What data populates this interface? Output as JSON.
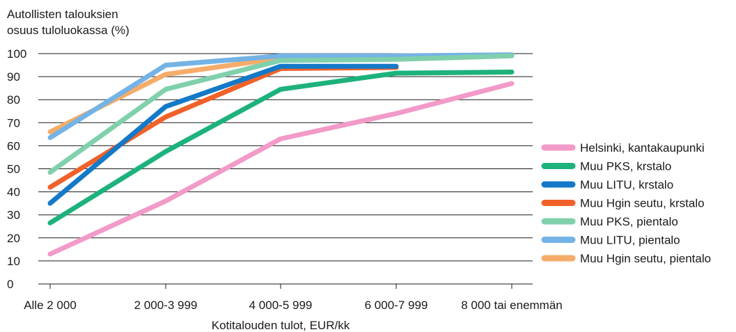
{
  "chart_data": {
    "type": "line",
    "ylabel_lines": [
      "Autollisten talouksien",
      "osuus tuloluokassa (%)"
    ],
    "xlabel": "Kotitalouden tulot, EUR/kk",
    "categories": [
      "Alle 2 000",
      "2 000-3 999",
      "4 000-5 999",
      "6 000-7 999",
      "8 000 tai enemmän"
    ],
    "ylim": [
      0,
      100
    ],
    "yticks": [
      "0",
      "10",
      "20",
      "30",
      "40",
      "50",
      "60",
      "70",
      "80",
      "90",
      "100"
    ],
    "grid": true,
    "legend_position": "right",
    "series": [
      {
        "name": "Helsinki, kantakaupunki",
        "color": "#f29ac8",
        "values": [
          13,
          36,
          63,
          74,
          87
        ]
      },
      {
        "name": "Muu PKS, krstalo",
        "color": "#1db27c",
        "values": [
          26.5,
          57.5,
          84.5,
          91.5,
          92
        ]
      },
      {
        "name": "Muu LITU, krstalo",
        "color": "#1479c7",
        "values": [
          35,
          77,
          94.5,
          94.5,
          null
        ]
      },
      {
        "name": "Muu Hgin seutu, krstalo",
        "color": "#f0622a",
        "values": [
          42,
          72.5,
          93.5,
          94,
          null
        ]
      },
      {
        "name": "Muu PKS, pientalo",
        "color": "#80d0ac",
        "values": [
          48.5,
          84.5,
          97,
          97.5,
          99
        ]
      },
      {
        "name": "Muu LITU, pientalo",
        "color": "#74b3e6",
        "values": [
          63.5,
          95,
          99,
          99,
          99.5
        ]
      },
      {
        "name": "Muu Hgin seutu, pientalo",
        "color": "#f5ac6a",
        "values": [
          66,
          91,
          98,
          99,
          99.5
        ]
      }
    ]
  }
}
